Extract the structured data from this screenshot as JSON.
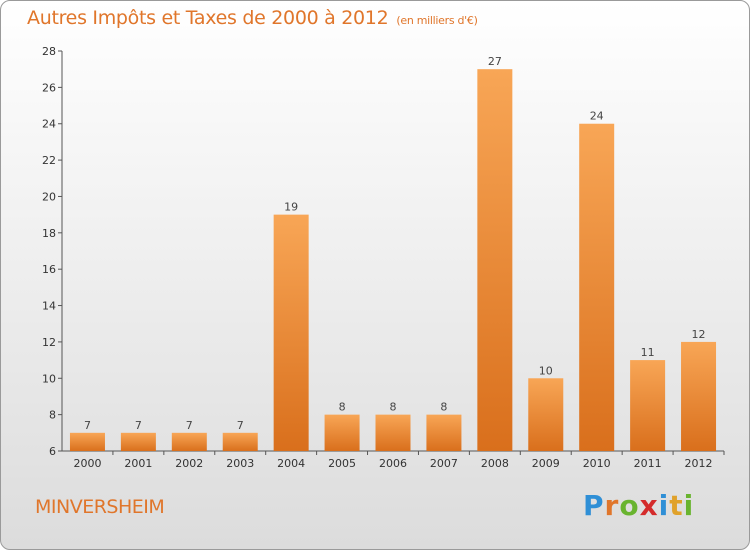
{
  "title": "Autres Impôts et Taxes de 2000 à 2012",
  "unit": "(en milliers d'€)",
  "commune": "MINVERSHEIM",
  "logo": {
    "text": "Proxiti",
    "letters": [
      {
        "ch": "P",
        "color": "#2f8fd6"
      },
      {
        "ch": "r",
        "color": "#e0762b"
      },
      {
        "ch": "o",
        "color": "#69b42f"
      },
      {
        "ch": "x",
        "color": "#d42b2b"
      },
      {
        "ch": "i",
        "color": "#2f8fd6"
      },
      {
        "ch": "t",
        "color": "#e0a22b"
      },
      {
        "ch": "i",
        "color": "#69b42f"
      }
    ]
  },
  "colors": {
    "bar_top": "#f8a656",
    "bar_bottom": "#d96f1c",
    "title": "#e0762b"
  },
  "chart_data": {
    "type": "bar",
    "categories": [
      "2000",
      "2001",
      "2002",
      "2003",
      "2004",
      "2005",
      "2006",
      "2007",
      "2008",
      "2009",
      "2010",
      "2011",
      "2012"
    ],
    "values": [
      7,
      7,
      7,
      7,
      19,
      8,
      8,
      8,
      27,
      10,
      24,
      11,
      12
    ],
    "ylim": [
      6,
      28
    ],
    "yticks": [
      6,
      8,
      10,
      12,
      14,
      16,
      18,
      20,
      22,
      24,
      26,
      28
    ],
    "grid": false
  }
}
